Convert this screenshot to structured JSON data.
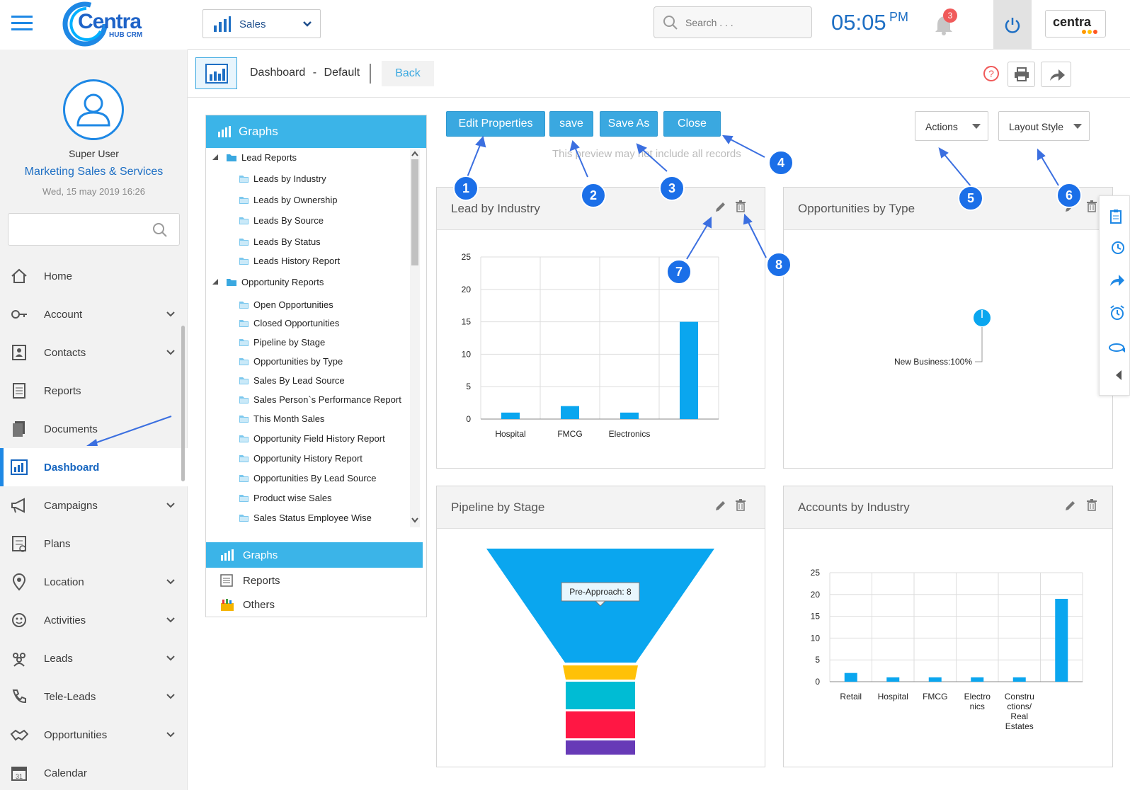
{
  "brand": {
    "logo_text": "Centra",
    "logo_sub": "HUB CRM",
    "right_logo": "centra"
  },
  "header": {
    "module": "Sales",
    "search_placeholder": "Search . . .",
    "time": "05:05",
    "ampm": "PM",
    "notif_count": "3"
  },
  "user": {
    "name": "Super User",
    "company": "Marketing Sales & Services",
    "datetime": "Wed, 15 may 2019 16:26"
  },
  "sidebar": {
    "items": [
      {
        "label": "Home",
        "icon": "home-icon",
        "chevron": false
      },
      {
        "label": "Account",
        "icon": "key-icon",
        "chevron": true
      },
      {
        "label": "Contacts",
        "icon": "contacts-icon",
        "chevron": true
      },
      {
        "label": "Reports",
        "icon": "reports-icon",
        "chevron": false
      },
      {
        "label": "Documents",
        "icon": "documents-icon",
        "chevron": false
      },
      {
        "label": "Dashboard",
        "icon": "dashboard-icon",
        "chevron": false,
        "active": true
      },
      {
        "label": "Campaigns",
        "icon": "megaphone-icon",
        "chevron": true
      },
      {
        "label": "Plans",
        "icon": "plans-icon",
        "chevron": false
      },
      {
        "label": "Location",
        "icon": "location-icon",
        "chevron": true
      },
      {
        "label": "Activities",
        "icon": "activities-icon",
        "chevron": true
      },
      {
        "label": "Leads",
        "icon": "leads-icon",
        "chevron": true
      },
      {
        "label": "Tele-Leads",
        "icon": "phone-icon",
        "chevron": true
      },
      {
        "label": "Opportunities",
        "icon": "handshake-icon",
        "chevron": true
      },
      {
        "label": "Calendar",
        "icon": "calendar-icon",
        "chevron": false
      }
    ]
  },
  "breadcrumb": {
    "title": "Dashboard",
    "sep": "-",
    "view": "Default",
    "back": "Back"
  },
  "tree": {
    "header": "Graphs",
    "groups": [
      {
        "label": "Lead Reports",
        "items": [
          "Leads by Industry",
          "Leads by Ownership",
          "Leads By Source",
          "Leads By Status",
          "Leads History Report"
        ]
      },
      {
        "label": "Opportunity Reports",
        "items": [
          "Open Opportunities",
          "Closed Opportunities",
          "Pipeline by Stage",
          "Opportunities by Type",
          "Sales By Lead Source",
          "Sales Person`s Performance Report",
          "This Month Sales",
          "Opportunity Field History Report",
          "Opportunity History Report",
          "Opportunities By Lead Source",
          "Product wise Sales",
          "Sales Status Employee Wise"
        ]
      }
    ],
    "tabs": [
      "Graphs",
      "Reports",
      "Others"
    ]
  },
  "actions": {
    "edit": "Edit Properties",
    "save": "save",
    "save_as": "Save As",
    "close": "Close",
    "actions": "Actions",
    "layout": "Layout Style",
    "note": "This preview may not include all records"
  },
  "badges": [
    "1",
    "2",
    "3",
    "4",
    "5",
    "6",
    "7",
    "8"
  ],
  "panels": {
    "lead_industry": "Lead by Industry",
    "opp_type": "Opportunities by Type",
    "pipeline": "Pipeline by Stage",
    "acc_industry": "Accounts by Industry"
  },
  "pie_label": "New Business:100%",
  "funnel_tooltip": "Pre-Approach: 8",
  "colors": {
    "accent": "#3aa8e0",
    "bar": "#0aa6ef",
    "badge": "#1b6fe8",
    "funnel": [
      "#0aa6ef",
      "#ffc107",
      "#00bcd4",
      "#ff1744",
      "#673ab7"
    ]
  },
  "chart_data": [
    {
      "type": "bar",
      "categories": [
        "Hospital",
        "FMCG",
        "Electronics",
        ""
      ],
      "values": [
        1,
        2,
        1,
        15
      ],
      "ylim": [
        0,
        25
      ],
      "yticks": [
        0,
        5,
        10,
        15,
        20,
        25
      ]
    },
    {
      "type": "pie",
      "slices": [
        {
          "label": "New Business",
          "value": 100
        }
      ]
    },
    {
      "type": "bar",
      "categories": [
        "Retail",
        "Hospital",
        "FMCG",
        "Electro nics",
        "Constru ctions/ Real Estates",
        ""
      ],
      "values": [
        2,
        1,
        1,
        1,
        1,
        19
      ],
      "ylim": [
        0,
        25
      ],
      "yticks": [
        0,
        5,
        10,
        15,
        20,
        25
      ]
    }
  ]
}
